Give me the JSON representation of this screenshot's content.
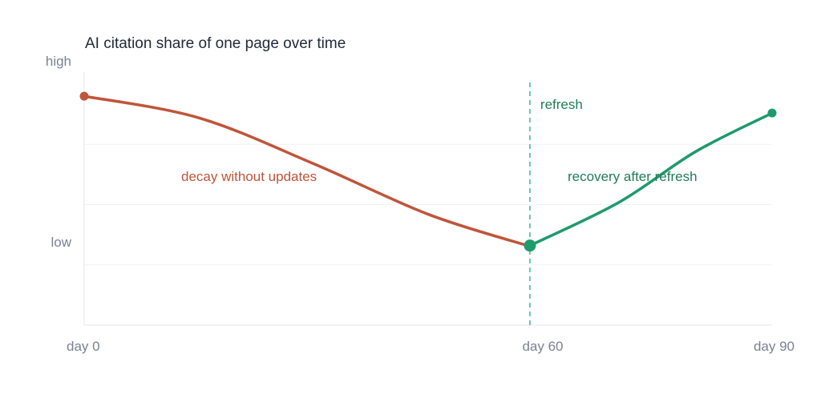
{
  "chart_data": {
    "type": "line",
    "title": "AI citation share of one page over time",
    "x_ticks": [
      {
        "label": "day 0",
        "value": 0
      },
      {
        "label": "day 60",
        "value": 60
      },
      {
        "label": "day 90",
        "value": 90
      }
    ],
    "xlim": [
      0,
      90
    ],
    "y_ticks": [
      {
        "label": "high",
        "value": 1.0
      },
      {
        "label": "low",
        "value": 0.25
      }
    ],
    "ylim": [
      0,
      1.05
    ],
    "grid": "horizontal",
    "series": [
      {
        "label": "decay without updates",
        "color": "#c0553a",
        "x": [
          0,
          15,
          30,
          45,
          58
        ],
        "y": [
          0.95,
          0.86,
          0.67,
          0.46,
          0.33
        ]
      },
      {
        "label": "recovery after refresh",
        "color": "#1f9a6c",
        "x": [
          58,
          70,
          80,
          90
        ],
        "y": [
          0.33,
          0.51,
          0.72,
          0.88
        ]
      }
    ],
    "event": {
      "label": "refresh",
      "x": 58,
      "color": "#3fb987"
    }
  }
}
